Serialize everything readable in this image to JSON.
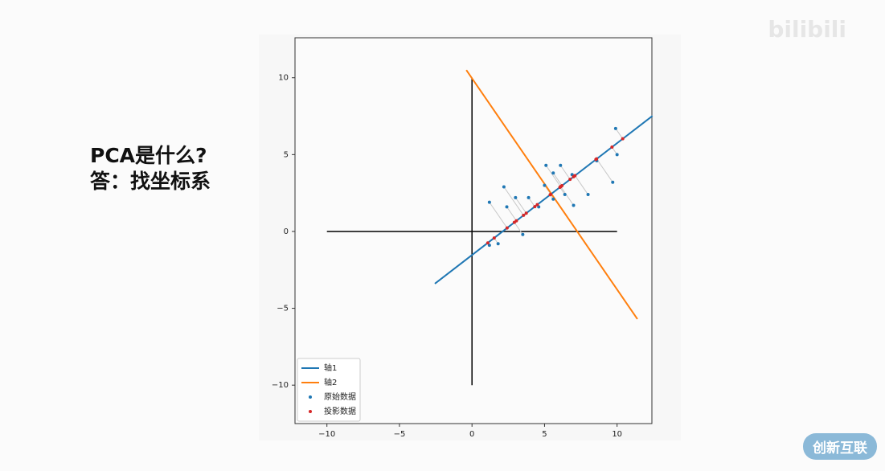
{
  "slide": {
    "lines": [
      "PCA是什么?",
      "答：找坐标系"
    ]
  },
  "watermark": "bilibili",
  "logo": "创新互联",
  "chart_data": {
    "type": "scatter",
    "xlim": [
      -12.2,
      12.4
    ],
    "ylim": [
      -12.5,
      12.6
    ],
    "xticks": [
      {
        "value": -10,
        "label": "−10"
      },
      {
        "value": -5,
        "label": "−5"
      },
      0,
      5,
      10
    ],
    "yticks": [
      {
        "value": -10,
        "label": "−10"
      },
      {
        "value": -5,
        "label": "−5"
      },
      0,
      5,
      10
    ],
    "legend": "lower left",
    "reference_lines": {
      "color": "#000000",
      "lines": [
        {
          "x": [
            -10,
            10
          ],
          "y": [
            0,
            0
          ]
        },
        {
          "x": [
            0,
            0
          ],
          "y": [
            10,
            -10
          ]
        }
      ]
    },
    "series": [
      {
        "name": "轴1",
        "kind": "line",
        "color": "#1f77b4",
        "x": [
          -2.56,
          12.44
        ],
        "y": [
          -3.4,
          7.52
        ]
      },
      {
        "name": "轴2",
        "kind": "line",
        "color": "#ff7f0e",
        "x": [
          -0.39,
          11.4
        ],
        "y": [
          10.5,
          -5.7
        ]
      },
      {
        "name": "原始数据",
        "kind": "points",
        "color": "#1f77b4",
        "x": [
          1.2,
          2.2,
          2.4,
          3.0,
          3.9,
          4.6,
          5.0,
          5.1,
          5.6,
          6.1,
          6.4,
          6.9,
          7.0,
          8.0,
          8.6,
          9.7,
          9.9,
          10.0,
          3.5,
          1.2,
          1.8,
          5.6
        ],
        "y": [
          1.9,
          2.9,
          1.6,
          2.2,
          2.2,
          1.6,
          3.0,
          4.3,
          3.8,
          4.3,
          2.4,
          3.7,
          1.7,
          2.4,
          4.6,
          3.2,
          6.7,
          5.0,
          -0.2,
          -0.9,
          -0.8,
          2.1
        ]
      },
      {
        "name": "投影数据",
        "kind": "points",
        "color": "#d62728",
        "x": [
          2.42,
          3.55,
          3.06,
          3.74,
          4.33,
          4.5,
          5.43,
          6.11,
          6.2,
          6.76,
          6.06,
          7.0,
          6.12,
          7.1,
          8.54,
          8.59,
          10.39,
          9.65,
          2.92,
          1.09,
          1.53,
          5.39
        ],
        "y": [
          0.225,
          1.048,
          0.692,
          1.186,
          1.614,
          1.74,
          2.415,
          2.913,
          2.978,
          3.389,
          2.873,
          3.562,
          2.917,
          3.635,
          4.683,
          4.721,
          6.029,
          5.487,
          0.592,
          -0.745,
          -0.425,
          2.389
        ]
      }
    ]
  }
}
